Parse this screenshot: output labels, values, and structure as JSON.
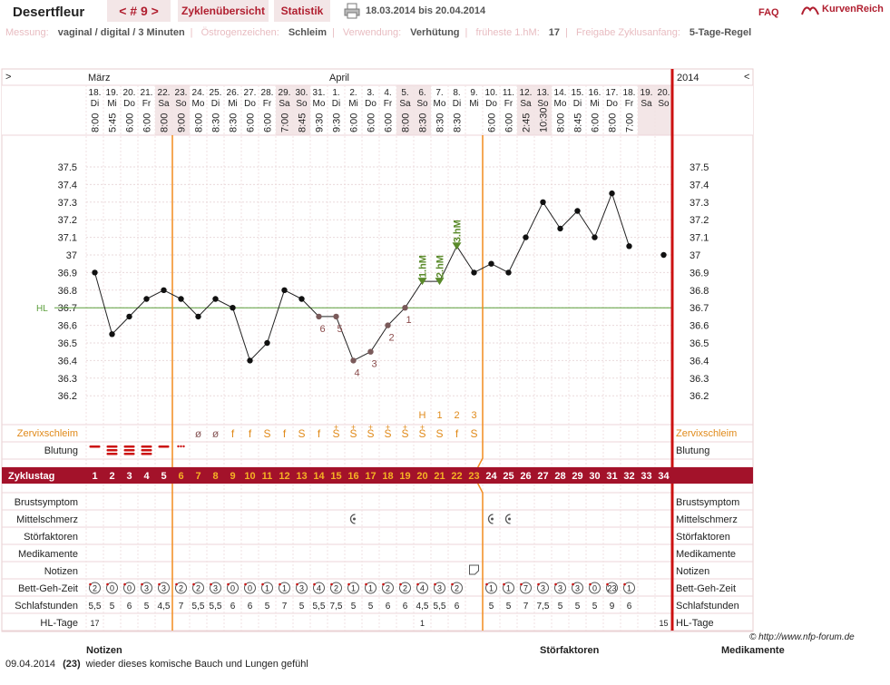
{
  "header": {
    "app_name": "Desertfleur",
    "cycle_nav": "< # 9 >",
    "tab_overview": "Zyklenübersicht",
    "tab_statistics": "Statistik",
    "date_range": "18.03.2014 bis 20.04.2014",
    "faq": "FAQ",
    "logo_text": "KurvenReich"
  },
  "meta": [
    {
      "label": "Messung:",
      "value": "vaginal / digital / 3 Minuten"
    },
    {
      "label": "Östrogenzeichen:",
      "value": "Schleim"
    },
    {
      "label": "Verwendung:",
      "value": "Verhütung"
    },
    {
      "label": "früheste 1.hM:",
      "value": "17"
    },
    {
      "label": "Freigabe Zyklusanfang:",
      "value": "5-Tage-Regel"
    }
  ],
  "colors": {
    "accent": "#b01e2f",
    "temp_line": "#222222",
    "cover_line": "#5a9e3a",
    "ovulation_line": "#f28c1e",
    "mucus": "#e08a1a",
    "marker": "#5a8a2a",
    "count_label": "#8a4a4a"
  },
  "chart_data": {
    "type": "line",
    "months": [
      {
        "label": "März",
        "day_index": 0
      },
      {
        "label": "April",
        "day_index": 14
      }
    ],
    "year": "2014",
    "nav_left": ">",
    "nav_right": "<",
    "dates": [
      "18.",
      "19.",
      "20.",
      "21.",
      "22.",
      "23.",
      "24.",
      "25.",
      "26.",
      "27.",
      "28.",
      "29.",
      "30.",
      "31.",
      "1.",
      "2.",
      "3.",
      "4.",
      "5.",
      "6.",
      "7.",
      "8.",
      "9.",
      "10.",
      "11.",
      "12.",
      "13.",
      "14.",
      "15.",
      "16.",
      "17.",
      "18.",
      "19.",
      "20."
    ],
    "weekdays": [
      "Di",
      "Mi",
      "Do",
      "Fr",
      "Sa",
      "So",
      "Mo",
      "Di",
      "Mi",
      "Do",
      "Fr",
      "Sa",
      "So",
      "Mo",
      "Di",
      "Mi",
      "Do",
      "Fr",
      "Sa",
      "So",
      "Mo",
      "Di",
      "Mi",
      "Do",
      "Fr",
      "Sa",
      "So",
      "Mo",
      "Di",
      "Mi",
      "Do",
      "Fr",
      "Sa",
      "So"
    ],
    "times": [
      "8:00",
      "5:45",
      "6:00",
      "6:00",
      "8:00",
      "9:00",
      "8:00",
      "8:30",
      "8:30",
      "6:00",
      "6:00",
      "7:00",
      "8:45",
      "9:30",
      "9:30",
      "6:00",
      "6:00",
      "6:00",
      "8:00",
      "8:30",
      "8:30",
      "8:30",
      "",
      "6:00",
      "6:00",
      "2:45",
      "10:30",
      "8:00",
      "8:45",
      "6:00",
      "8:00",
      "7:00",
      "",
      ""
    ],
    "temperatures": [
      36.9,
      36.55,
      36.65,
      36.75,
      36.8,
      36.75,
      36.65,
      36.75,
      36.7,
      36.4,
      36.5,
      36.8,
      36.75,
      36.65,
      36.65,
      36.4,
      36.45,
      36.6,
      36.7,
      36.85,
      36.85,
      37.05,
      36.9,
      36.95,
      36.9,
      37.1,
      37.3,
      37.15,
      37.25,
      37.1,
      37.35,
      37.05,
      null,
      37.0
    ],
    "y_ticks": [
      "37.5",
      "37.4",
      "37.3",
      "37.2",
      "37.1",
      "37",
      "36.9",
      "36.8",
      "36.7",
      "36.6",
      "36.5",
      "36.4",
      "36.3",
      "36.2"
    ],
    "ylim": [
      36.2,
      37.5
    ],
    "coverline": 36.7,
    "coverline_label": "HL",
    "count_labels": [
      {
        "day_index": 13,
        "text": "6"
      },
      {
        "day_index": 14,
        "text": "5"
      },
      {
        "day_index": 15,
        "text": "4"
      },
      {
        "day_index": 16,
        "text": "3"
      },
      {
        "day_index": 17,
        "text": "2"
      },
      {
        "day_index": 18,
        "text": "1"
      }
    ],
    "high_measurements": [
      {
        "day_index": 19,
        "text": "1.hM"
      },
      {
        "day_index": 20,
        "text": "2.hM"
      },
      {
        "day_index": 21,
        "text": "3.hM"
      }
    ],
    "ovulation_lines_after_day": [
      4,
      22
    ],
    "mucus_counts": [
      {
        "day_index": 19,
        "text": "H"
      },
      {
        "day_index": 20,
        "text": "1"
      },
      {
        "day_index": 21,
        "text": "2"
      },
      {
        "day_index": 22,
        "text": "3"
      }
    ],
    "mucus_label": "Zervixschleim",
    "mucus": [
      "",
      "",
      "",
      "",
      "",
      "",
      "ø",
      "ø",
      "f",
      "f",
      "S",
      "f",
      "S",
      "f",
      "S+",
      "S+",
      "S+",
      "S+",
      "S+",
      "S+",
      "S",
      "f",
      "S",
      "",
      "",
      "",
      "",
      "",
      "",
      "",
      "",
      "",
      "",
      ""
    ],
    "bleeding_label": "Blutung",
    "bleeding": [
      1,
      3,
      3,
      3,
      1,
      "s",
      0,
      0,
      0,
      0,
      0,
      0,
      0,
      0,
      0,
      0,
      0,
      0,
      0,
      0,
      0,
      0,
      0,
      0,
      0,
      0,
      0,
      0,
      0,
      0,
      0,
      0,
      0,
      0
    ],
    "cycle_day_label": "Zyklustag",
    "cycle_days": [
      "1",
      "2",
      "3",
      "4",
      "5",
      "6",
      "7",
      "8",
      "9",
      "10",
      "11",
      "12",
      "13",
      "14",
      "15",
      "16",
      "17",
      "18",
      "19",
      "20",
      "21",
      "22",
      "23",
      "24",
      "25",
      "26",
      "27",
      "28",
      "29",
      "30",
      "31",
      "32",
      "33",
      "34"
    ],
    "row_breast": "Brustsymptom",
    "row_midpain": "Mittelschmerz",
    "midpain_days": [
      15,
      23,
      24
    ],
    "row_disruptions": "Störfaktoren",
    "row_medication": "Medikamente",
    "row_notes": "Notizen",
    "note_days": [
      22
    ],
    "row_bedtime": "Bett-Geh-Zeit",
    "bedtime": [
      "2",
      "0",
      "0",
      "3",
      "3",
      "2",
      "2",
      "3",
      "0",
      "0",
      "1",
      "1",
      "3",
      "4",
      "2",
      "1",
      "1",
      "2",
      "2",
      "4",
      "3",
      "2",
      "",
      "1",
      "1",
      "7",
      "3",
      "3",
      "3",
      "0",
      "23",
      "1",
      "",
      ""
    ],
    "row_sleep": "Schlafstunden",
    "sleep": [
      "5,5",
      "5",
      "6",
      "5",
      "4,5",
      "7",
      "5,5",
      "5,5",
      "6",
      "6",
      "5",
      "7",
      "5",
      "5,5",
      "7,5",
      "5",
      "5",
      "6",
      "6",
      "4,5",
      "5,5",
      "6",
      "",
      "5",
      "5",
      "7",
      "7,5",
      "5",
      "5",
      "5",
      "9",
      "6",
      "",
      ""
    ],
    "row_hl_days": "HL-Tage",
    "hl_days": [
      {
        "day_index": 0,
        "text": "17"
      },
      {
        "day_index": 19,
        "text": "1"
      },
      {
        "day_index": 33,
        "text": "15"
      }
    ]
  },
  "footer": {
    "copyright": "© http://www.nfp-forum.de",
    "col_notes": "Notizen",
    "col_disruptions": "Störfaktoren",
    "col_medication": "Medikamente",
    "note_date": "09.04.2014",
    "note_day": "(23)",
    "note_text": "wieder dieses komische Bauch und Lungen gefühl"
  }
}
